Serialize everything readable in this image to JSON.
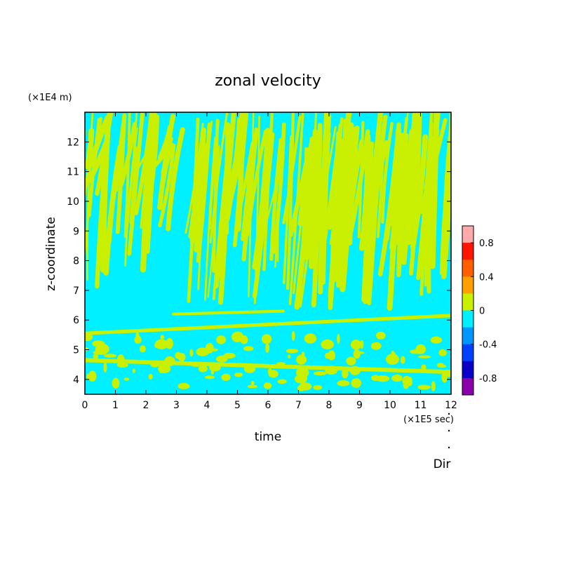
{
  "chart_data": {
    "type": "heatmap",
    "title": "zonal velocity",
    "xlabel": "time",
    "ylabel": "z-coordinate",
    "x_unit": "(×1E5 sec)",
    "y_unit": "(×1E4 m)",
    "xlim": [
      0,
      12
    ],
    "ylim": [
      3.5,
      13
    ],
    "x_ticks": [
      "0",
      "1",
      "2",
      "3",
      "4",
      "5",
      "6",
      "7",
      "8",
      "9",
      "10",
      "11",
      "12"
    ],
    "y_ticks": [
      "4",
      "5",
      "6",
      "7",
      "8",
      "9",
      "10",
      "11",
      "12"
    ],
    "colorbar": {
      "levels": [
        -1.0,
        -0.8,
        -0.6,
        -0.4,
        -0.2,
        0,
        0.2,
        0.4,
        0.6,
        0.8,
        1.0
      ],
      "colors": [
        "#8a00aa",
        "#0a00c8",
        "#0041ff",
        "#0096ff",
        "#00f0ff",
        "#c8f000",
        "#ffa000",
        "#ff5f00",
        "#ff1400",
        "#ffaaaa"
      ],
      "tick_labels": [
        "0.8",
        "0.4",
        "0",
        "-0.4",
        "-0.8"
      ]
    },
    "dominant_fill": "#00f0ff",
    "positive_fill": "#c8f000",
    "features": [
      {
        "kind": "band",
        "t0": 0.0,
        "z0": 5.55,
        "t1": 12.0,
        "z1": 6.15,
        "width": 0.12
      },
      {
        "kind": "band",
        "t0": 0.0,
        "z0": 4.65,
        "t1": 12.0,
        "z1": 4.25,
        "width": 0.14
      },
      {
        "kind": "band",
        "t0": 2.9,
        "z0": 6.2,
        "t1": 6.5,
        "z1": 6.3,
        "width": 0.1
      }
    ]
  },
  "annotation": {
    "dir_label": "Dir"
  }
}
